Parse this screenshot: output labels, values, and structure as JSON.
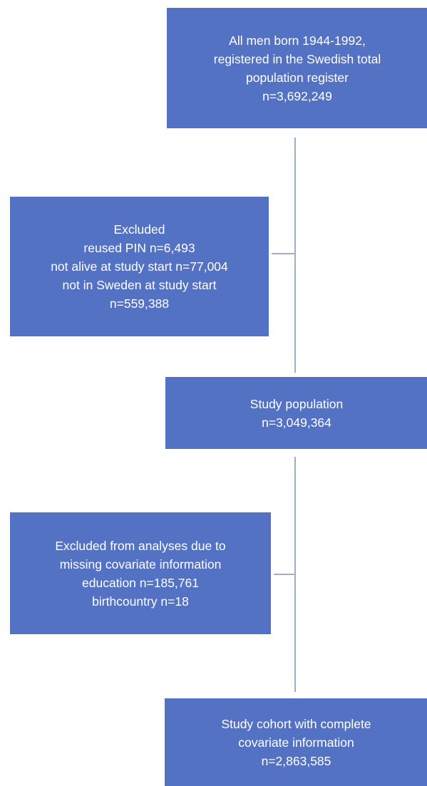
{
  "flowchart": {
    "start_box": {
      "lines": [
        "All men born 1944-1992,",
        "registered in the Swedish total",
        "population register",
        "n=3,692,249"
      ]
    },
    "exclusion_1": {
      "lines": [
        "Excluded",
        "reused PIN n=6,493",
        "not alive at study start n=77,004",
        "not in Sweden at study start",
        "n=559,388"
      ]
    },
    "study_population": {
      "lines": [
        "Study population",
        "n=3,049,364"
      ]
    },
    "exclusion_2": {
      "lines": [
        "Excluded from analyses due to",
        "missing covariate information",
        "education n=185,761",
        "birthcountry n=18"
      ]
    },
    "final_cohort": {
      "lines": [
        "Study cohort with complete",
        "covariate information",
        "n=2,863,585"
      ]
    }
  },
  "colors": {
    "box_fill": "#5472c4",
    "box_text": "#ffffff",
    "connector": "#9fb0c4"
  }
}
